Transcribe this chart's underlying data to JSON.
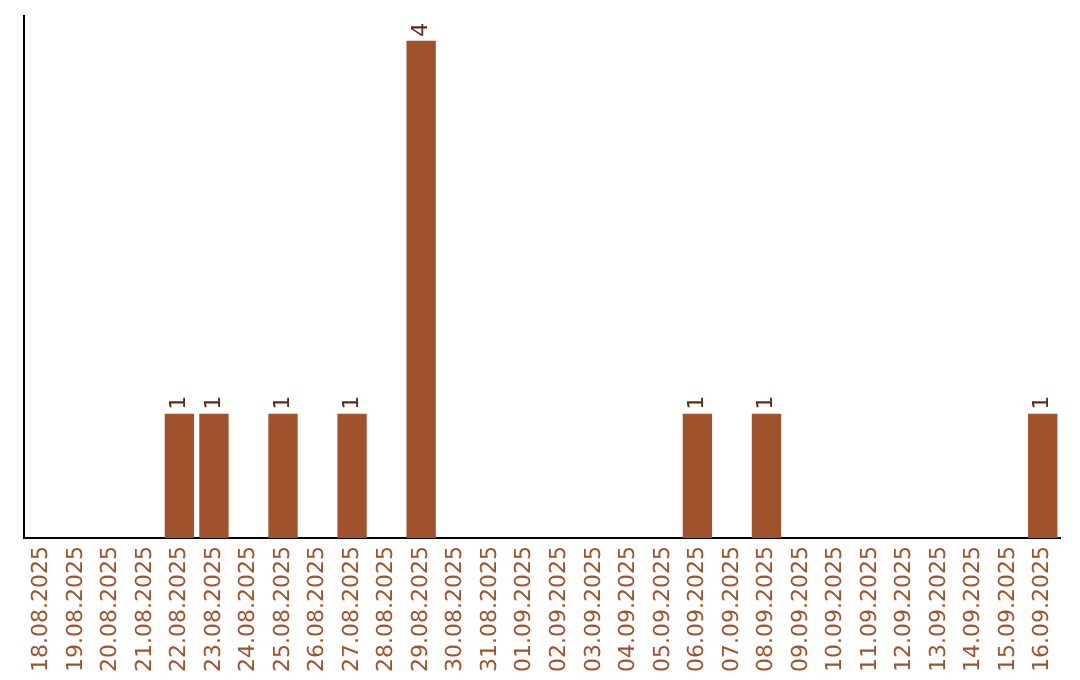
{
  "chart_data": {
    "type": "bar",
    "categories": [
      "18.08.2025",
      "19.08.2025",
      "20.08.2025",
      "21.08.2025",
      "22.08.2025",
      "23.08.2025",
      "24.08.2025",
      "25.08.2025",
      "26.08.2025",
      "27.08.2025",
      "28.08.2025",
      "29.08.2025",
      "30.08.2025",
      "31.08.2025",
      "01.09.2025",
      "02.09.2025",
      "03.09.2025",
      "04.09.2025",
      "05.09.2025",
      "06.09.2025",
      "07.09.2025",
      "08.09.2025",
      "09.09.2025",
      "10.09.2025",
      "11.09.2025",
      "12.09.2025",
      "13.09.2025",
      "14.09.2025",
      "15.09.2025",
      "16.09.2025"
    ],
    "values": [
      0,
      0,
      0,
      0,
      1,
      1,
      0,
      1,
      0,
      1,
      0,
      4,
      0,
      0,
      0,
      0,
      0,
      0,
      0,
      1,
      0,
      1,
      0,
      0,
      0,
      0,
      0,
      0,
      0,
      1
    ],
    "value_labels": [
      null,
      null,
      null,
      null,
      "1",
      "1",
      null,
      "1",
      null,
      "1",
      null,
      "4",
      null,
      null,
      null,
      null,
      null,
      null,
      null,
      "1",
      null,
      "1",
      null,
      null,
      null,
      null,
      null,
      null,
      null,
      "1"
    ],
    "color": "#a0522d",
    "grid": false,
    "legend": false,
    "tick_labels": "x"
  }
}
